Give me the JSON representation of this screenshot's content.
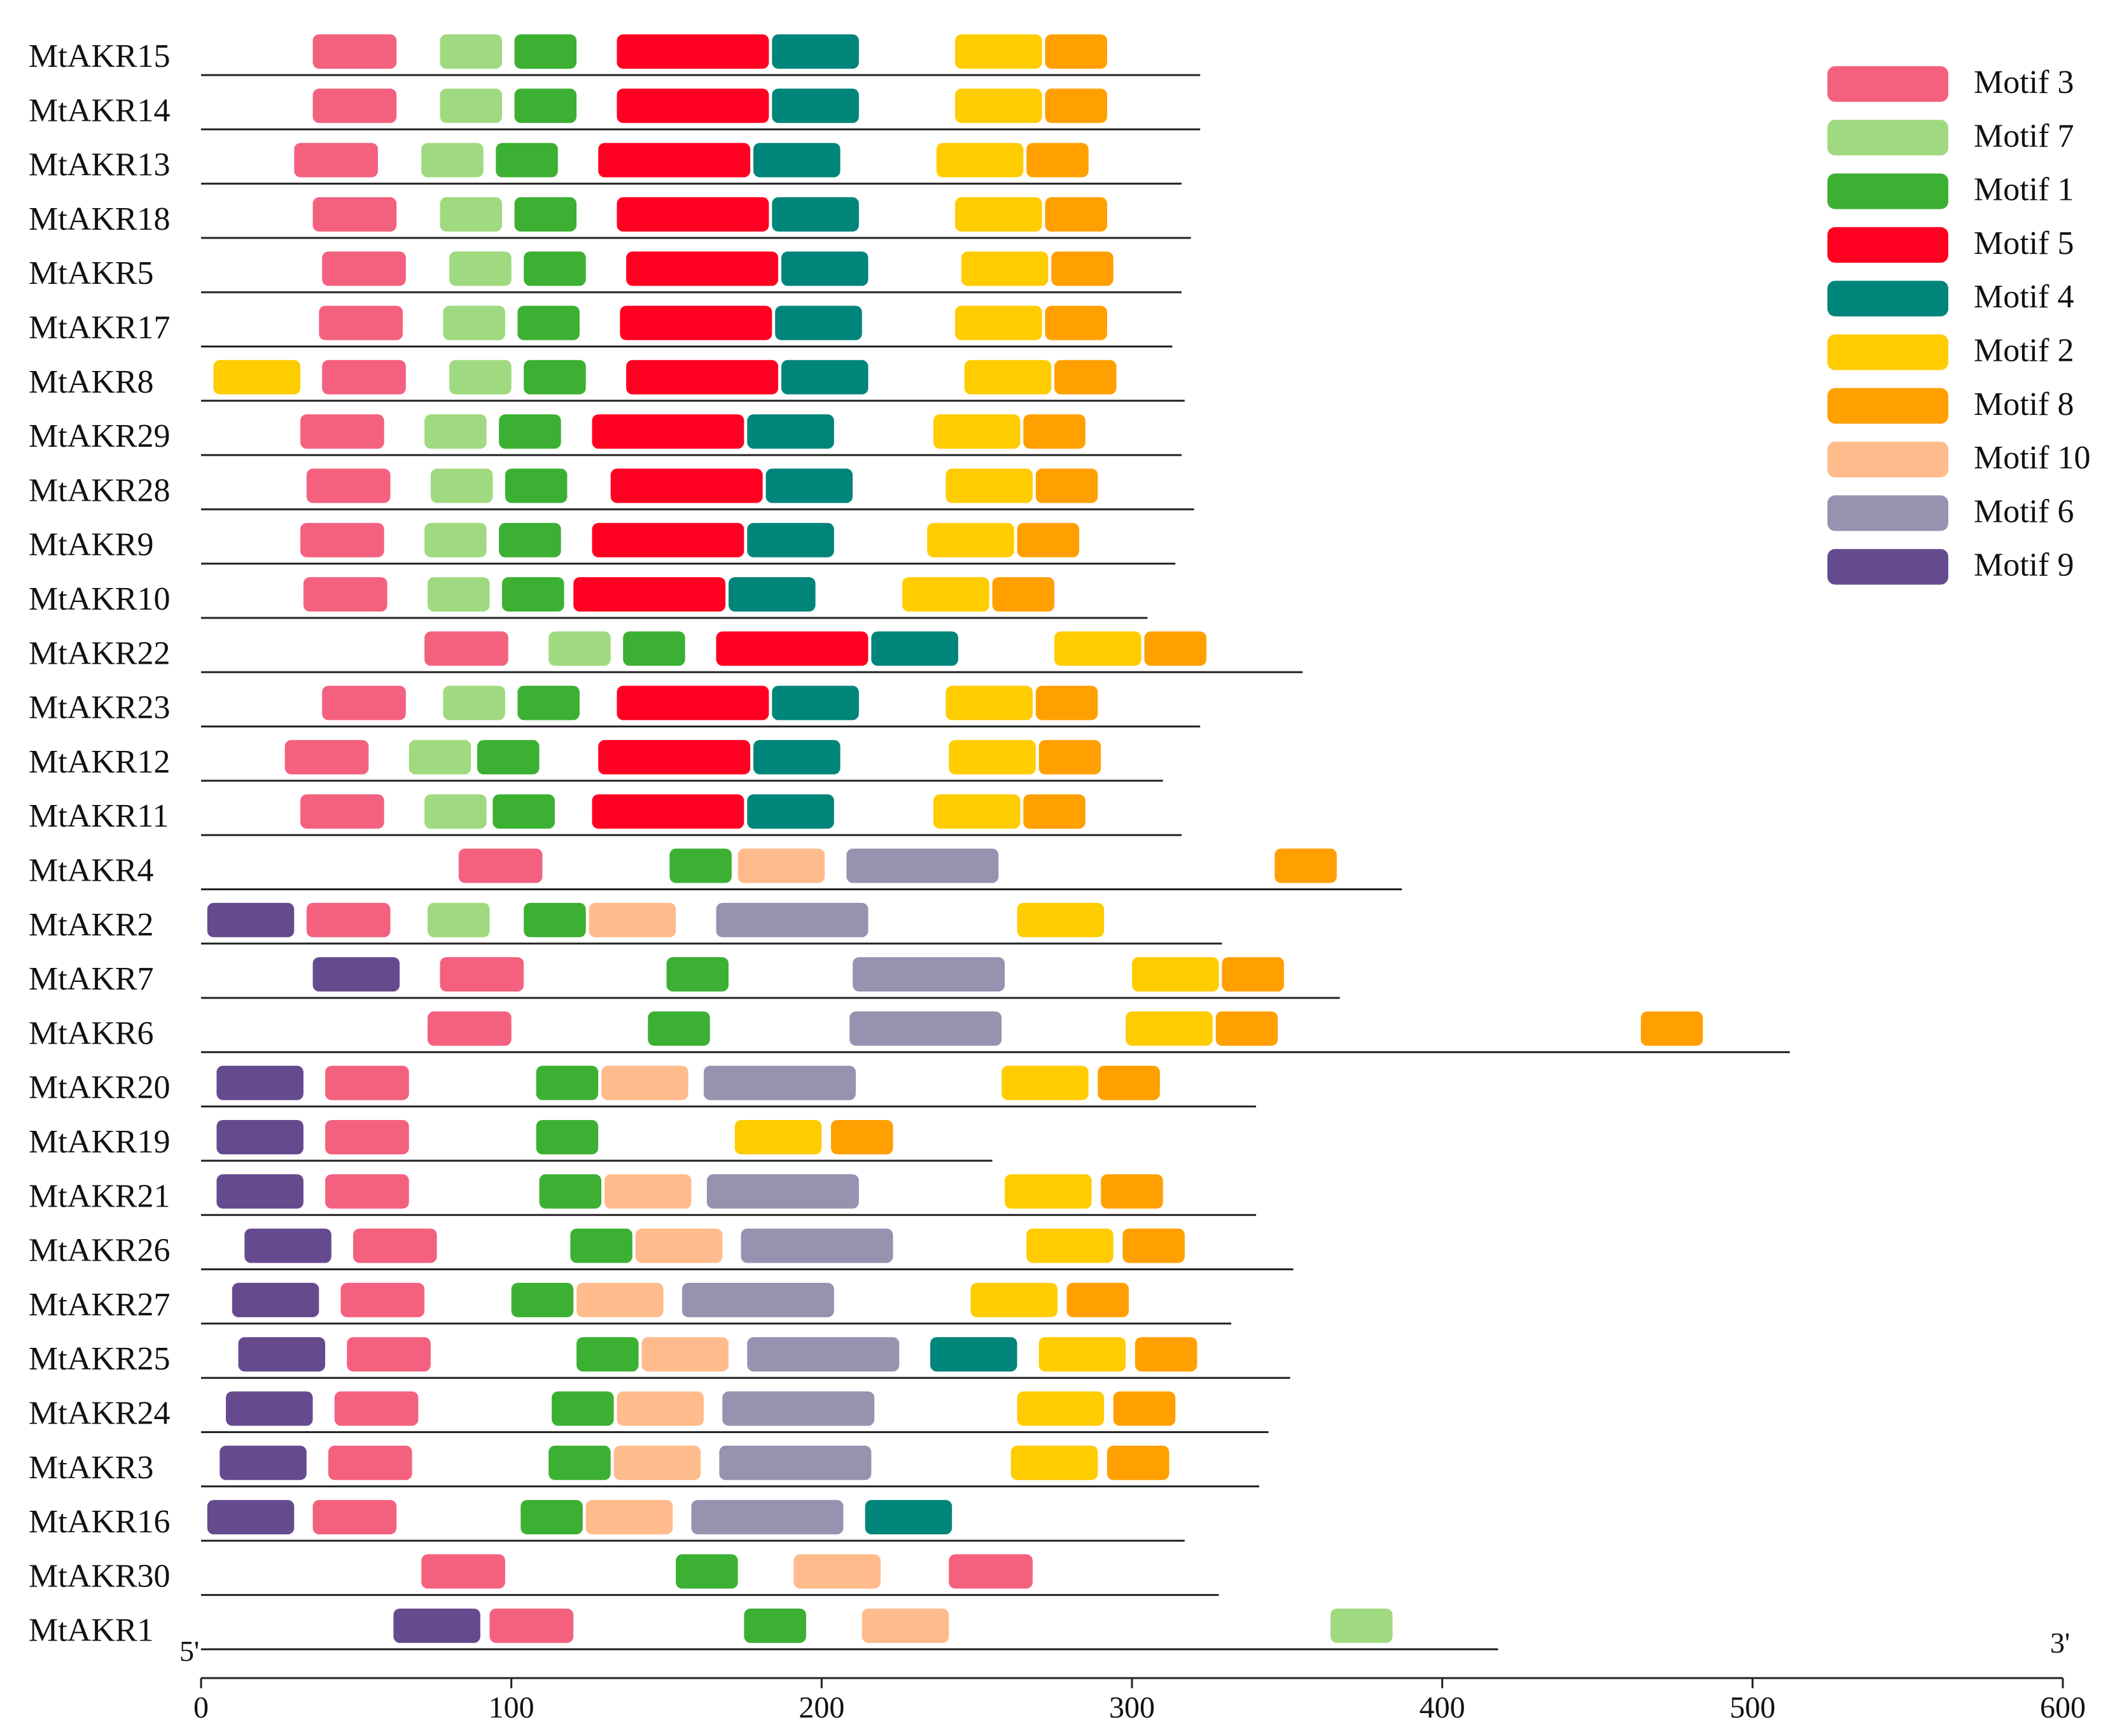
{
  "diagram": {
    "axis": {
      "min": 0,
      "max": 600,
      "ticks": [
        0,
        100,
        200,
        300,
        400,
        500,
        600
      ],
      "tick_labels": [
        "0",
        "100",
        "200",
        "300",
        "400",
        "500",
        "600"
      ],
      "start_label": "5'",
      "end_label": "3'"
    },
    "motifs": [
      {
        "id": "M3",
        "label": "Motif 3",
        "color": "#F4617F"
      },
      {
        "id": "M7",
        "label": "Motif 7",
        "color": "#A0DA80"
      },
      {
        "id": "M1",
        "label": "Motif 1",
        "color": "#3CB033"
      },
      {
        "id": "M5",
        "label": "Motif 5",
        "color": "#FF0022"
      },
      {
        "id": "M4",
        "label": "Motif 4",
        "color": "#00857A"
      },
      {
        "id": "M2",
        "label": "Motif 2",
        "color": "#FFCC00"
      },
      {
        "id": "M8",
        "label": "Motif 8",
        "color": "#FFA000"
      },
      {
        "id": "M10",
        "label": "Motif 10",
        "color": "#FFBB8C"
      },
      {
        "id": "M6",
        "label": "Motif 6",
        "color": "#9892B0"
      },
      {
        "id": "M9",
        "label": "Motif 9",
        "color": "#664A8E"
      }
    ],
    "genes": [
      {
        "name": "MtAKR15",
        "length": 322,
        "segments": [
          [
            "M3",
            36,
            63
          ],
          [
            "M7",
            77,
            97
          ],
          [
            "M1",
            101,
            121
          ],
          [
            "M5",
            134,
            183
          ],
          [
            "M4",
            184,
            212
          ],
          [
            "M2",
            243,
            271
          ],
          [
            "M8",
            272,
            292
          ]
        ]
      },
      {
        "name": "MtAKR14",
        "length": 322,
        "segments": [
          [
            "M3",
            36,
            63
          ],
          [
            "M7",
            77,
            97
          ],
          [
            "M1",
            101,
            121
          ],
          [
            "M5",
            134,
            183
          ],
          [
            "M4",
            184,
            212
          ],
          [
            "M2",
            243,
            271
          ],
          [
            "M8",
            272,
            292
          ]
        ]
      },
      {
        "name": "MtAKR13",
        "length": 316,
        "segments": [
          [
            "M3",
            30,
            57
          ],
          [
            "M7",
            71,
            91
          ],
          [
            "M1",
            95,
            115
          ],
          [
            "M5",
            128,
            177
          ],
          [
            "M4",
            178,
            206
          ],
          [
            "M2",
            237,
            265
          ],
          [
            "M8",
            266,
            286
          ]
        ]
      },
      {
        "name": "MtAKR18",
        "length": 319,
        "segments": [
          [
            "M3",
            36,
            63
          ],
          [
            "M7",
            77,
            97
          ],
          [
            "M1",
            101,
            121
          ],
          [
            "M5",
            134,
            183
          ],
          [
            "M4",
            184,
            212
          ],
          [
            "M2",
            243,
            271
          ],
          [
            "M8",
            272,
            292
          ]
        ]
      },
      {
        "name": "MtAKR5",
        "length": 316,
        "segments": [
          [
            "M3",
            39,
            66
          ],
          [
            "M7",
            80,
            100
          ],
          [
            "M1",
            104,
            124
          ],
          [
            "M5",
            137,
            186
          ],
          [
            "M4",
            187,
            215
          ],
          [
            "M2",
            245,
            273
          ],
          [
            "M8",
            274,
            294
          ]
        ]
      },
      {
        "name": "MtAKR17",
        "length": 313,
        "segments": [
          [
            "M3",
            38,
            65
          ],
          [
            "M7",
            78,
            98
          ],
          [
            "M1",
            102,
            122
          ],
          [
            "M5",
            135,
            184
          ],
          [
            "M4",
            185,
            213
          ],
          [
            "M2",
            243,
            271
          ],
          [
            "M8",
            272,
            292
          ]
        ]
      },
      {
        "name": "MtAKR8",
        "length": 317,
        "segments": [
          [
            "M2",
            4,
            32
          ],
          [
            "M3",
            39,
            66
          ],
          [
            "M7",
            80,
            100
          ],
          [
            "M1",
            104,
            124
          ],
          [
            "M5",
            137,
            186
          ],
          [
            "M4",
            187,
            215
          ],
          [
            "M2",
            246,
            274
          ],
          [
            "M8",
            275,
            295
          ]
        ]
      },
      {
        "name": "MtAKR29",
        "length": 316,
        "segments": [
          [
            "M3",
            32,
            59
          ],
          [
            "M7",
            72,
            92
          ],
          [
            "M1",
            96,
            116
          ],
          [
            "M5",
            126,
            175
          ],
          [
            "M4",
            176,
            204
          ],
          [
            "M2",
            236,
            264
          ],
          [
            "M8",
            265,
            285
          ]
        ]
      },
      {
        "name": "MtAKR28",
        "length": 320,
        "segments": [
          [
            "M3",
            34,
            61
          ],
          [
            "M7",
            74,
            94
          ],
          [
            "M1",
            98,
            118
          ],
          [
            "M5",
            132,
            181
          ],
          [
            "M4",
            182,
            210
          ],
          [
            "M2",
            240,
            268
          ],
          [
            "M8",
            269,
            289
          ]
        ]
      },
      {
        "name": "MtAKR9",
        "length": 314,
        "segments": [
          [
            "M3",
            32,
            59
          ],
          [
            "M7",
            72,
            92
          ],
          [
            "M1",
            96,
            116
          ],
          [
            "M5",
            126,
            175
          ],
          [
            "M4",
            176,
            204
          ],
          [
            "M2",
            234,
            262
          ],
          [
            "M8",
            263,
            283
          ]
        ]
      },
      {
        "name": "MtAKR10",
        "length": 305,
        "segments": [
          [
            "M3",
            33,
            60
          ],
          [
            "M7",
            73,
            93
          ],
          [
            "M1",
            97,
            117
          ],
          [
            "M5",
            120,
            169
          ],
          [
            "M4",
            170,
            198
          ],
          [
            "M2",
            226,
            254
          ],
          [
            "M8",
            255,
            275
          ]
        ]
      },
      {
        "name": "MtAKR22",
        "length": 355,
        "segments": [
          [
            "M3",
            72,
            99
          ],
          [
            "M7",
            112,
            132
          ],
          [
            "M1",
            136,
            156
          ],
          [
            "M5",
            166,
            215
          ],
          [
            "M4",
            216,
            244
          ],
          [
            "M2",
            275,
            303
          ],
          [
            "M8",
            304,
            324
          ]
        ]
      },
      {
        "name": "MtAKR23",
        "length": 322,
        "segments": [
          [
            "M3",
            39,
            66
          ],
          [
            "M7",
            78,
            98
          ],
          [
            "M1",
            102,
            122
          ],
          [
            "M5",
            134,
            183
          ],
          [
            "M4",
            184,
            212
          ],
          [
            "M2",
            240,
            268
          ],
          [
            "M8",
            269,
            289
          ]
        ]
      },
      {
        "name": "MtAKR12",
        "length": 310,
        "segments": [
          [
            "M3",
            27,
            54
          ],
          [
            "M7",
            67,
            87
          ],
          [
            "M1",
            89,
            109
          ],
          [
            "M5",
            128,
            177
          ],
          [
            "M4",
            178,
            206
          ],
          [
            "M2",
            241,
            269
          ],
          [
            "M8",
            270,
            290
          ]
        ]
      },
      {
        "name": "MtAKR11",
        "length": 316,
        "segments": [
          [
            "M3",
            32,
            59
          ],
          [
            "M7",
            72,
            92
          ],
          [
            "M1",
            94,
            114
          ],
          [
            "M5",
            126,
            175
          ],
          [
            "M4",
            176,
            204
          ],
          [
            "M2",
            236,
            264
          ],
          [
            "M8",
            265,
            285
          ]
        ]
      },
      {
        "name": "MtAKR4",
        "length": 387,
        "segments": [
          [
            "M3",
            83,
            110
          ],
          [
            "M1",
            151,
            171
          ],
          [
            "M10",
            173,
            201
          ],
          [
            "M6",
            208,
            257
          ],
          [
            "M8",
            346,
            366
          ]
        ]
      },
      {
        "name": "MtAKR2",
        "length": 329,
        "segments": [
          [
            "M9",
            2,
            30
          ],
          [
            "M3",
            34,
            61
          ],
          [
            "M7",
            73,
            93
          ],
          [
            "M1",
            104,
            124
          ],
          [
            "M10",
            125,
            153
          ],
          [
            "M6",
            166,
            215
          ],
          [
            "M2",
            263,
            291
          ]
        ]
      },
      {
        "name": "MtAKR7",
        "length": 367,
        "segments": [
          [
            "M9",
            36,
            64
          ],
          [
            "M3",
            77,
            104
          ],
          [
            "M1",
            150,
            170
          ],
          [
            "M6",
            210,
            259
          ],
          [
            "M2",
            300,
            328
          ],
          [
            "M8",
            329,
            349
          ]
        ]
      },
      {
        "name": "MtAKR6",
        "length": 512,
        "segments": [
          [
            "M3",
            73,
            100
          ],
          [
            "M1",
            144,
            164
          ],
          [
            "M6",
            209,
            258
          ],
          [
            "M2",
            298,
            326
          ],
          [
            "M8",
            327,
            347
          ],
          [
            "M8",
            464,
            484
          ]
        ]
      },
      {
        "name": "MtAKR20",
        "length": 340,
        "segments": [
          [
            "M9",
            5,
            33
          ],
          [
            "M3",
            40,
            67
          ],
          [
            "M1",
            108,
            128
          ],
          [
            "M10",
            129,
            157
          ],
          [
            "M6",
            162,
            211
          ],
          [
            "M2",
            258,
            286
          ],
          [
            "M8",
            289,
            309
          ]
        ]
      },
      {
        "name": "MtAKR19",
        "length": 255,
        "segments": [
          [
            "M9",
            5,
            33
          ],
          [
            "M3",
            40,
            67
          ],
          [
            "M1",
            108,
            128
          ],
          [
            "M2",
            172,
            200
          ],
          [
            "M8",
            203,
            223
          ]
        ]
      },
      {
        "name": "MtAKR21",
        "length": 340,
        "segments": [
          [
            "M9",
            5,
            33
          ],
          [
            "M3",
            40,
            67
          ],
          [
            "M1",
            109,
            129
          ],
          [
            "M10",
            130,
            158
          ],
          [
            "M6",
            163,
            212
          ],
          [
            "M2",
            259,
            287
          ],
          [
            "M8",
            290,
            310
          ]
        ]
      },
      {
        "name": "MtAKR26",
        "length": 352,
        "segments": [
          [
            "M9",
            14,
            42
          ],
          [
            "M3",
            49,
            76
          ],
          [
            "M1",
            119,
            139
          ],
          [
            "M10",
            140,
            168
          ],
          [
            "M6",
            174,
            223
          ],
          [
            "M2",
            266,
            294
          ],
          [
            "M8",
            297,
            317
          ]
        ]
      },
      {
        "name": "MtAKR27",
        "length": 332,
        "segments": [
          [
            "M9",
            10,
            38
          ],
          [
            "M3",
            45,
            72
          ],
          [
            "M1",
            100,
            120
          ],
          [
            "M10",
            121,
            149
          ],
          [
            "M6",
            155,
            204
          ],
          [
            "M2",
            248,
            276
          ],
          [
            "M8",
            279,
            299
          ]
        ]
      },
      {
        "name": "MtAKR25",
        "length": 351,
        "segments": [
          [
            "M9",
            12,
            40
          ],
          [
            "M3",
            47,
            74
          ],
          [
            "M1",
            121,
            141
          ],
          [
            "M10",
            142,
            170
          ],
          [
            "M6",
            176,
            225
          ],
          [
            "M4",
            235,
            263
          ],
          [
            "M2",
            270,
            298
          ],
          [
            "M8",
            301,
            321
          ]
        ]
      },
      {
        "name": "MtAKR24",
        "length": 344,
        "segments": [
          [
            "M9",
            8,
            36
          ],
          [
            "M3",
            43,
            70
          ],
          [
            "M1",
            113,
            133
          ],
          [
            "M10",
            134,
            162
          ],
          [
            "M6",
            168,
            217
          ],
          [
            "M2",
            263,
            291
          ],
          [
            "M8",
            294,
            314
          ]
        ]
      },
      {
        "name": "MtAKR3",
        "length": 341,
        "segments": [
          [
            "M9",
            6,
            34
          ],
          [
            "M3",
            41,
            68
          ],
          [
            "M1",
            112,
            132
          ],
          [
            "M10",
            133,
            161
          ],
          [
            "M6",
            167,
            216
          ],
          [
            "M2",
            261,
            289
          ],
          [
            "M8",
            292,
            312
          ]
        ]
      },
      {
        "name": "MtAKR16",
        "length": 317,
        "segments": [
          [
            "M9",
            2,
            30
          ],
          [
            "M3",
            36,
            63
          ],
          [
            "M1",
            103,
            123
          ],
          [
            "M10",
            124,
            152
          ],
          [
            "M6",
            158,
            207
          ],
          [
            "M4",
            214,
            242
          ]
        ]
      },
      {
        "name": "MtAKR30",
        "length": 328,
        "segments": [
          [
            "M3",
            71,
            98
          ],
          [
            "M1",
            153,
            173
          ],
          [
            "M10",
            191,
            219
          ],
          [
            "M3",
            241,
            268
          ]
        ]
      },
      {
        "name": "MtAKR1",
        "length": 418,
        "segments": [
          [
            "M9",
            62,
            90
          ],
          [
            "M3",
            93,
            120
          ],
          [
            "M1",
            175,
            195
          ],
          [
            "M10",
            213,
            241
          ],
          [
            "M7",
            364,
            384
          ]
        ]
      }
    ]
  }
}
